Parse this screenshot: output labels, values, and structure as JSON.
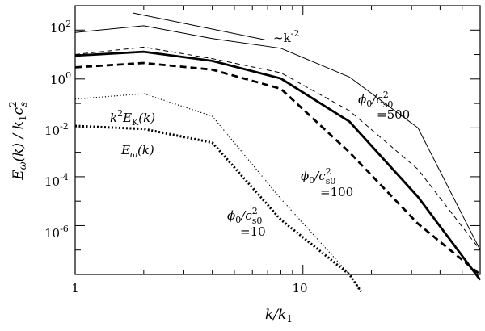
{
  "chart_data": {
    "type": "line",
    "xlabel": "k/k",
    "xlabel_sub": "1",
    "ylabel": "E",
    "ylabel_parts": {
      "sym": "E",
      "sub1": "ω",
      "arg": "(k) / k",
      "sub2": "1",
      "tail": "c",
      "sup": "2",
      "sub3": "s"
    },
    "x_scale": "log",
    "y_scale": "log",
    "xlim": [
      1,
      60
    ],
    "ylim": [
      1e-08,
      1000
    ],
    "x_ticks": [
      {
        "value": 1,
        "label": "1"
      },
      {
        "value": 10,
        "label": "10"
      }
    ],
    "y_ticks": [
      {
        "value": 1e-06,
        "base": "10",
        "exp": "-6"
      },
      {
        "value": 0.0001,
        "base": "10",
        "exp": "-4"
      },
      {
        "value": 0.01,
        "base": "10",
        "exp": "-2"
      },
      {
        "value": 1,
        "base": "10",
        "exp": "0"
      },
      {
        "value": 100,
        "base": "10",
        "exp": "2"
      }
    ],
    "series": [
      {
        "style": "thin-solid",
        "x": [
          1,
          2,
          4,
          8,
          16,
          32,
          60
        ],
        "y": [
          80,
          150,
          45,
          18,
          1.2,
          0.01,
          1e-07
        ]
      },
      {
        "style": "thin-dashed",
        "x": [
          1,
          2,
          4,
          8,
          16,
          32,
          60
        ],
        "y": [
          10,
          20,
          6.8,
          1.8,
          0.05,
          0.0002,
          1e-07
        ]
      },
      {
        "style": "thick-solid",
        "x": [
          1,
          2,
          4,
          8,
          16,
          32,
          60
        ],
        "y": [
          9,
          13,
          5.5,
          1.05,
          0.018,
          1.5e-05,
          6e-09
        ]
      },
      {
        "style": "thick-dashed",
        "x": [
          1,
          2,
          4,
          8,
          16,
          32,
          60
        ],
        "y": [
          3.0,
          4.5,
          2.4,
          0.4,
          0.001,
          1.2e-06,
          1e-08
        ]
      },
      {
        "style": "thin-dotted",
        "x": [
          1,
          2,
          4,
          8,
          16,
          18
        ],
        "y": [
          0.15,
          0.25,
          0.03,
          1.25e-05,
          1e-08,
          2e-09
        ]
      },
      {
        "style": "thick-dotted",
        "x": [
          1,
          2,
          4,
          8,
          16,
          18
        ],
        "y": [
          0.012,
          0.009,
          0.0025,
          1.75e-06,
          1e-08,
          2e-09
        ]
      },
      {
        "style": "reference",
        "x": [
          1.8,
          6.8
        ],
        "y": [
          500,
          40
        ]
      }
    ],
    "annotations": [
      {
        "id": "slope",
        "main": "~k",
        "sup": "-2"
      },
      {
        "id": "kek",
        "pre": "k",
        "sup": "2",
        "main": "E",
        "sub": "K",
        "post": "(k)"
      },
      {
        "id": "eomega",
        "main": "E",
        "sub": "ω",
        "post": "(k)"
      },
      {
        "id": "phi500",
        "main": "ϕ",
        "sub": "0",
        "slash": "/c",
        "sup": "2",
        "sub2": "s0",
        "eq": "=500"
      },
      {
        "id": "phi100",
        "main": "ϕ",
        "sub": "0",
        "slash": "/c",
        "sup": "2",
        "sub2": "s0",
        "eq": "=100"
      },
      {
        "id": "phi10",
        "main": "ϕ",
        "sub": "0",
        "slash": "/c",
        "sup": "2",
        "sub2": "s0",
        "eq": "=10"
      }
    ]
  }
}
